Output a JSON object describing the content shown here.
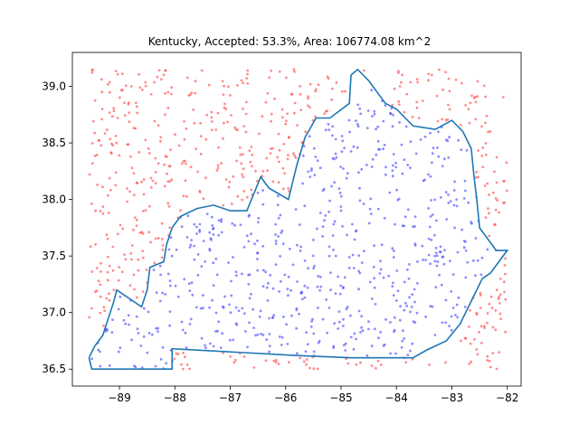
{
  "chart_data": {
    "type": "scatter",
    "title": "Kentucky, Accepted: 53.3%, Area: 106774.08 km^2",
    "xlabel": "",
    "ylabel": "",
    "xlim": [
      -89.85,
      -81.75
    ],
    "ylim": [
      36.35,
      39.3
    ],
    "xticks": [
      -89,
      -88,
      -87,
      -86,
      -85,
      -84,
      -83,
      -82
    ],
    "xtick_labels": [
      "−89",
      "−88",
      "−87",
      "−86",
      "−85",
      "−84",
      "−83",
      "−82"
    ],
    "yticks": [
      36.5,
      37.0,
      37.5,
      38.0,
      38.5,
      39.0
    ],
    "ytick_labels": [
      "36.5",
      "37.0",
      "37.5",
      "38.0",
      "38.5",
      "39.0"
    ],
    "grid": false,
    "colors": {
      "accepted": "#4040ff",
      "rejected": "#ff4040",
      "boundary": "#1f77b4"
    },
    "sample_count": 1200,
    "sample_seed": 7,
    "boundary": [
      [
        -89.55,
        36.6
      ],
      [
        -89.5,
        36.5
      ],
      [
        -88.05,
        36.5
      ],
      [
        -88.05,
        36.68
      ],
      [
        -86.9,
        36.65
      ],
      [
        -85.8,
        36.62
      ],
      [
        -84.8,
        36.6
      ],
      [
        -83.7,
        36.6
      ],
      [
        -83.45,
        36.67
      ],
      [
        -83.1,
        36.75
      ],
      [
        -82.85,
        36.9
      ],
      [
        -82.7,
        37.05
      ],
      [
        -82.45,
        37.3
      ],
      [
        -82.3,
        37.35
      ],
      [
        -82.0,
        37.55
      ],
      [
        -82.2,
        37.55
      ],
      [
        -82.5,
        37.75
      ],
      [
        -82.55,
        38.0
      ],
      [
        -82.6,
        38.2
      ],
      [
        -82.65,
        38.45
      ],
      [
        -82.8,
        38.6
      ],
      [
        -83.0,
        38.7
      ],
      [
        -83.3,
        38.62
      ],
      [
        -83.7,
        38.65
      ],
      [
        -84.0,
        38.8
      ],
      [
        -84.2,
        38.85
      ],
      [
        -84.5,
        39.05
      ],
      [
        -84.6,
        39.1
      ],
      [
        -84.7,
        39.15
      ],
      [
        -84.82,
        39.1
      ],
      [
        -84.85,
        38.85
      ],
      [
        -85.2,
        38.72
      ],
      [
        -85.45,
        38.72
      ],
      [
        -85.65,
        38.55
      ],
      [
        -85.8,
        38.3
      ],
      [
        -85.95,
        38.0
      ],
      [
        -86.3,
        38.1
      ],
      [
        -86.45,
        38.2
      ],
      [
        -86.7,
        37.9
      ],
      [
        -87.0,
        37.9
      ],
      [
        -87.3,
        37.95
      ],
      [
        -87.6,
        37.92
      ],
      [
        -87.9,
        37.85
      ],
      [
        -88.05,
        37.75
      ],
      [
        -88.15,
        37.6
      ],
      [
        -88.2,
        37.45
      ],
      [
        -88.45,
        37.4
      ],
      [
        -88.5,
        37.2
      ],
      [
        -88.6,
        37.05
      ],
      [
        -89.05,
        37.2
      ],
      [
        -89.1,
        37.1
      ],
      [
        -89.2,
        36.95
      ],
      [
        -89.3,
        36.8
      ],
      [
        -89.45,
        36.7
      ],
      [
        -89.55,
        36.6
      ]
    ]
  }
}
